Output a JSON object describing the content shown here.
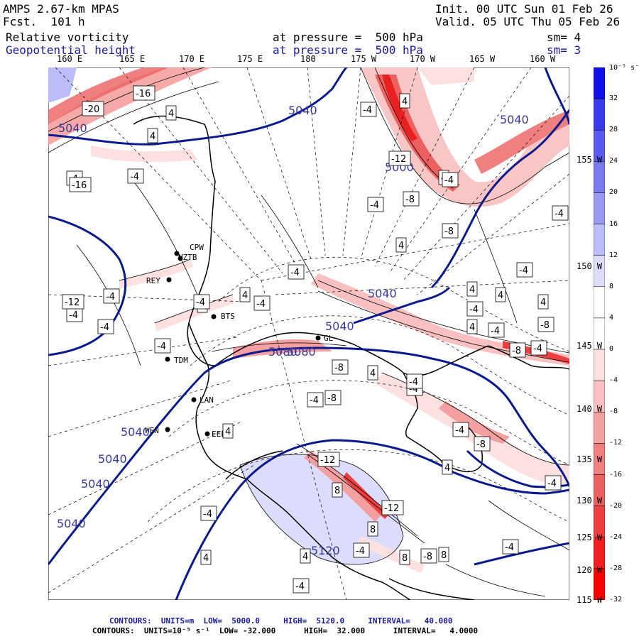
{
  "header": {
    "model": "AMPS 2.67-km MPAS",
    "fcst": "Fcst.  101 h",
    "init": "Init. 00 UTC Sun 01 Feb 26",
    "valid": "Valid. 05 UTC Thu 05 Feb 26",
    "field1_name": "Relative vorticity",
    "field1_level": "at pressure =  500 hPa",
    "field1_sm": "sm= 4",
    "field2_name": "Geopotential height",
    "field2_level": "at pressure =  500 hPa",
    "field2_sm": "sm= 3"
  },
  "longitude_labels": [
    "160 E",
    "165 E",
    "170 E",
    "175 E",
    "180",
    "175 W",
    "170 W",
    "165 W",
    "160 W"
  ],
  "latitude_labels": [
    "155 W",
    "150 W",
    "145 W",
    "140 W",
    "135 W",
    "130 W",
    "125 W",
    "120 W",
    "115 W"
  ],
  "colorbar": {
    "unit_label": "10⁻⁵ s⁻¹",
    "levels": [
      "32",
      "28",
      "24",
      "20",
      "16",
      "12",
      "8",
      "4",
      "0",
      "-4",
      "-8",
      "-12",
      "-16",
      "-20",
      "-24",
      "-28",
      "-32"
    ],
    "colors": [
      "#1010e8",
      "#3a3ae8",
      "#5a5aee",
      "#7a7af0",
      "#9a9af4",
      "#bcbcf8",
      "#dcdcfc",
      "#ffffff",
      "#ffffff",
      "#fde0e0",
      "#f8c0c0",
      "#f4a0a0",
      "#f08080",
      "#ec6060",
      "#ec4040",
      "#f02020",
      "#ff0000"
    ]
  },
  "height_contour_labels": [
    "5040",
    "5040",
    "5040",
    "5040",
    "5040",
    "5040",
    "5040",
    "5040",
    "5040",
    "5080",
    "5080",
    "5120",
    "5000"
  ],
  "vorticity_box_labels": [
    "-20",
    "-16",
    "4",
    "4",
    "-4",
    "-4",
    "-4",
    "-4",
    "-4",
    "-4",
    "-4",
    "-4",
    "4",
    "4",
    "-4",
    "-8",
    "4",
    "-8",
    "4",
    "-4",
    "-4",
    "-8",
    "-4",
    "-4",
    "-4",
    "4",
    "4",
    "8",
    "8",
    "-12",
    "-4",
    "8",
    "8",
    "-8",
    "4",
    "-4",
    "-4",
    "4",
    "-4",
    "-12",
    "-8",
    "-8",
    "4",
    "4",
    "4",
    "-4",
    "-4",
    "-4",
    "-4",
    "-4",
    "-4",
    "4",
    "-8",
    "-12",
    "-16",
    "-12",
    "4",
    "-4",
    "-8",
    "4",
    "-4"
  ],
  "stations": [
    "CPW",
    "NZTB",
    "REY",
    "BTS",
    "TDM",
    "LAN",
    "WEN",
    "EEL",
    "GL"
  ],
  "footer": {
    "line1_label": "CONTOURS:",
    "line1_units": "UNITS=m",
    "line1_low": "LOW=  5000.0",
    "line1_high": "HIGH=  5120.0",
    "line1_interval": "INTERVAL=   40.000",
    "line2_label": "CONTOURS:",
    "line2_units": "UNITS=10⁻⁵ s⁻¹",
    "line2_low": "LOW= -32.000",
    "line2_high": "HIGH=  32.000",
    "line2_interval": "INTERVAL=   4.0000"
  }
}
